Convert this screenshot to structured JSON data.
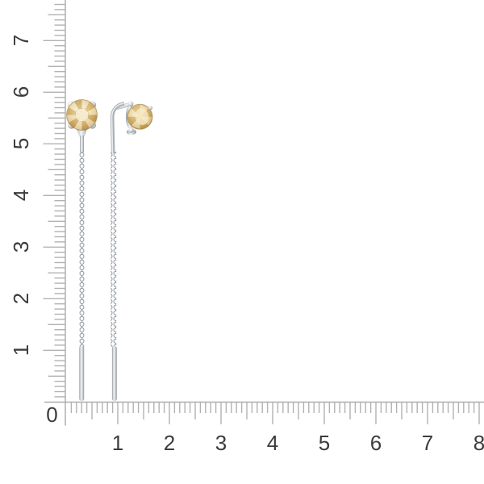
{
  "page": {
    "background": "#ffffff",
    "description": "Pair of silver threader chain earrings with round yellow gemstones photographed on white, with centimeter measurement rulers along the left and bottom edges"
  },
  "ruler": {
    "origin_label": "0",
    "horizontal_labels": [
      "1",
      "2",
      "3",
      "4",
      "5",
      "6",
      "7",
      "8"
    ],
    "vertical_labels": [
      "1",
      "2",
      "3",
      "4",
      "5",
      "6",
      "7"
    ],
    "tick_color": "#b2b2b2",
    "line_color": "#adadad",
    "label_color": "#3c3c3c"
  },
  "product": {
    "items": [
      "earring-left",
      "earring-right"
    ],
    "gemstone_color": "#e2c486",
    "gemstone_rim_color": "#a2813f",
    "metal_color": "#c6cbcf",
    "metal_shadow_color": "#8e959a"
  }
}
